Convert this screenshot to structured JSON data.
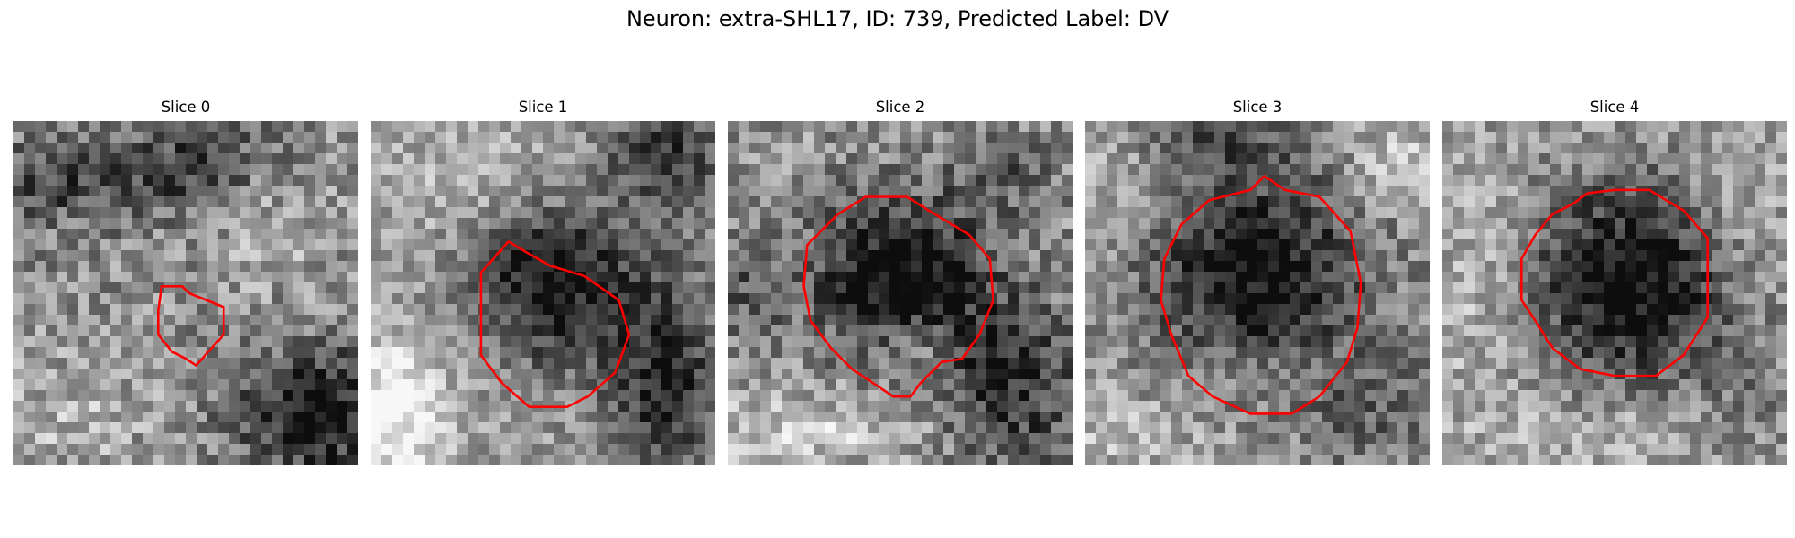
{
  "figure": {
    "title": "Neuron: extra-SHL17, ID: 739, Predicted Label: DV",
    "contour_color": "#ff0000",
    "colormap": "grayscale"
  },
  "slices": [
    {
      "title": "Slice 0"
    },
    {
      "title": "Slice 1"
    },
    {
      "title": "Slice 2"
    },
    {
      "title": "Slice 3"
    },
    {
      "title": "Slice 4"
    }
  ]
}
